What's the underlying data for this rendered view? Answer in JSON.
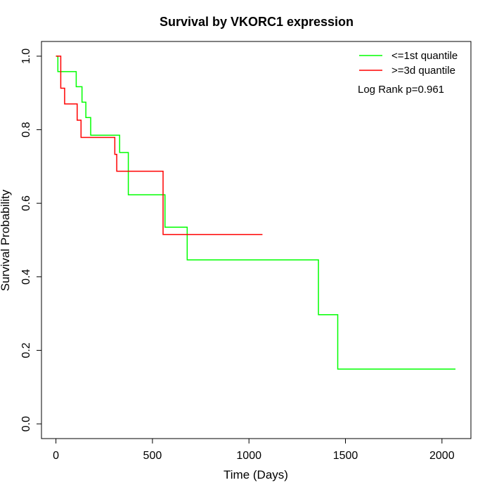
{
  "chart_data": {
    "type": "line",
    "title": "Survival by VKORC1 expression",
    "xlabel": "Time (Days)",
    "ylabel": "Survival Probability",
    "xlim": [
      -75,
      2150
    ],
    "ylim": [
      -0.04,
      1.04
    ],
    "xticks": [
      "0",
      "500",
      "1000",
      "1500",
      "2000"
    ],
    "yticks": [
      "0.0",
      "0.2",
      "0.4",
      "0.6",
      "0.8",
      "1.0"
    ],
    "grid": false,
    "legend_position": "top-right",
    "annotation": "Log Rank p=0.961",
    "series": [
      {
        "name": "<=1st quantile",
        "color": "#00ff00",
        "steps": [
          [
            0,
            1.0
          ],
          [
            10,
            0.958
          ],
          [
            105,
            0.917
          ],
          [
            135,
            0.875
          ],
          [
            155,
            0.833
          ],
          [
            180,
            0.785
          ],
          [
            330,
            0.738
          ],
          [
            375,
            0.623
          ],
          [
            565,
            0.535
          ],
          [
            680,
            0.446
          ],
          [
            1360,
            0.297
          ],
          [
            1460,
            0.149
          ],
          [
            2070,
            0.149
          ]
        ]
      },
      {
        "name": ">=3d quantile",
        "color": "#ff0000",
        "steps": [
          [
            0,
            1.0
          ],
          [
            25,
            0.913
          ],
          [
            45,
            0.87
          ],
          [
            110,
            0.826
          ],
          [
            130,
            0.779
          ],
          [
            305,
            0.733
          ],
          [
            315,
            0.687
          ],
          [
            555,
            0.515
          ],
          [
            1070,
            0.515
          ]
        ]
      }
    ]
  }
}
